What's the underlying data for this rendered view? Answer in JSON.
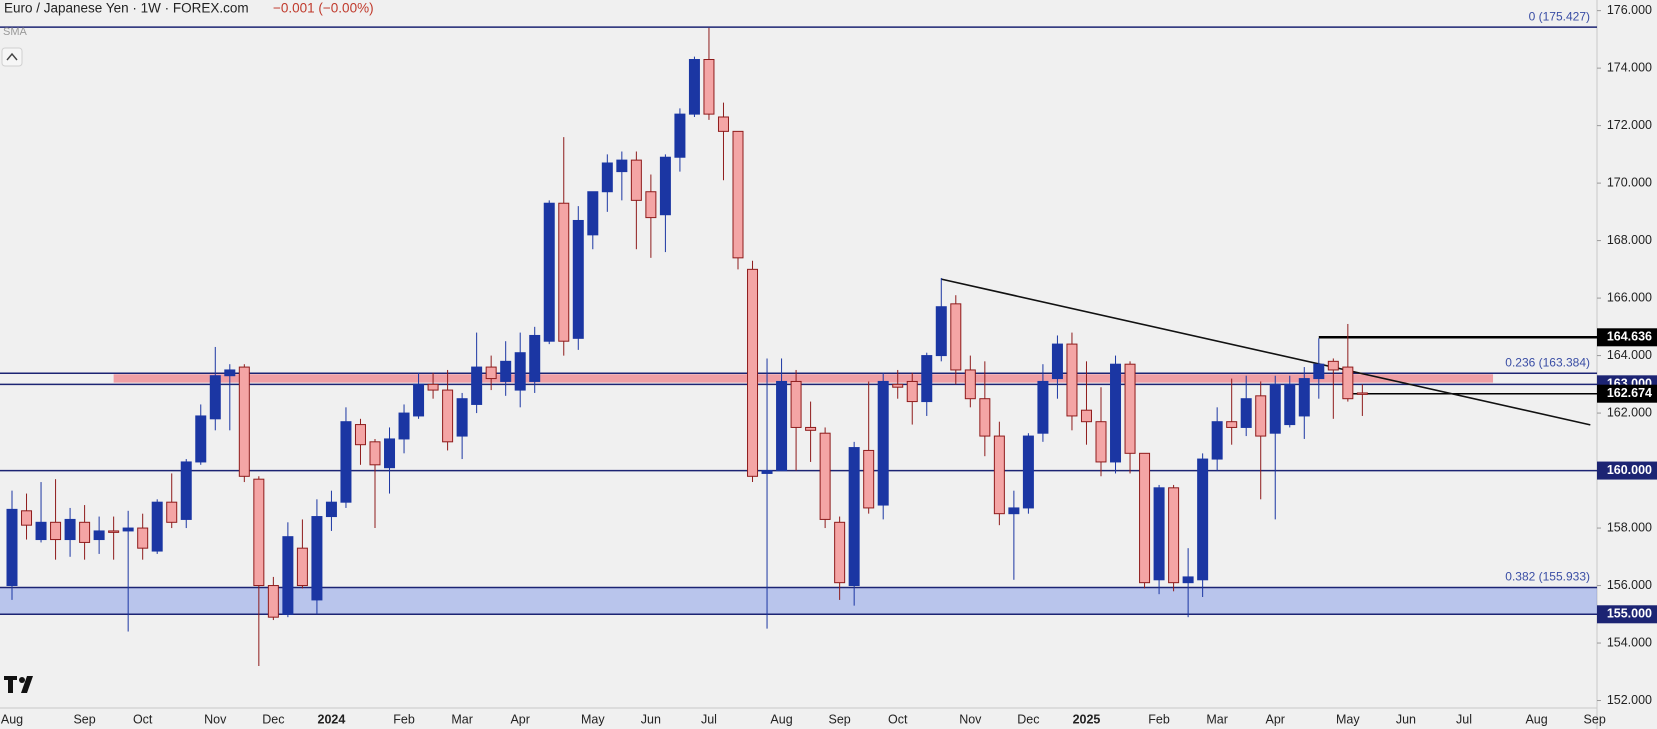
{
  "chart_data": {
    "type": "candlestick",
    "title": "Euro / Japanese Yen · 1W · FOREX.com",
    "change": "−0.001 (−0.00%)",
    "indicator": "SMA",
    "up_color": "#1b36a3",
    "down_color": "#f4a5a5",
    "down_edge": "#8e1b1b",
    "ylim": [
      151.74,
      176.37
    ],
    "yticks": [
      {
        "value": 152,
        "label": "152.000"
      },
      {
        "value": 154,
        "label": "154.000"
      },
      {
        "value": 156,
        "label": "156.000"
      },
      {
        "value": 158,
        "label": "158.000"
      },
      {
        "value": 162,
        "label": "162.000"
      },
      {
        "value": 164,
        "label": "164.000"
      },
      {
        "value": 166,
        "label": "166.000"
      },
      {
        "value": 168,
        "label": "168.000"
      },
      {
        "value": 170,
        "label": "170.000"
      },
      {
        "value": 172,
        "label": "172.000"
      },
      {
        "value": 174,
        "label": "174.000"
      },
      {
        "value": 176,
        "label": "176.000"
      }
    ],
    "categories": [
      "Aug",
      null,
      null,
      null,
      null,
      "Sep",
      null,
      null,
      null,
      "Oct",
      null,
      null,
      null,
      null,
      "Nov",
      null,
      null,
      null,
      "Dec",
      null,
      null,
      null,
      "2024",
      null,
      null,
      null,
      null,
      "Feb",
      null,
      null,
      null,
      "Mar",
      null,
      null,
      null,
      "Apr",
      null,
      null,
      null,
      null,
      "May",
      null,
      null,
      null,
      "Jun",
      null,
      null,
      null,
      "Jul",
      null,
      null,
      null,
      null,
      "Aug",
      null,
      null,
      null,
      "Sep",
      null,
      null,
      null,
      "Oct",
      null,
      null,
      null,
      null,
      "Nov",
      null,
      null,
      null,
      "Dec",
      null,
      null,
      null,
      "2025",
      null,
      null,
      null,
      null,
      "Feb",
      null,
      null,
      null,
      "Mar",
      null,
      null,
      null,
      "Apr",
      null,
      null,
      null,
      null,
      "May",
      null,
      null,
      null,
      "Jun",
      null,
      null,
      null,
      "Jul",
      null,
      null,
      null,
      null,
      "Aug",
      null,
      null,
      null,
      "Sep"
    ],
    "open": [
      156.0,
      158.6,
      157.6,
      158.2,
      157.6,
      158.2,
      157.6,
      157.9,
      157.9,
      158.0,
      157.2,
      158.9,
      158.3,
      160.3,
      161.8,
      163.3,
      163.6,
      159.7,
      156.0,
      155.0,
      157.3,
      155.5,
      158.4,
      158.9,
      161.6,
      161.0,
      160.1,
      161.1,
      161.9,
      163.0,
      162.8,
      161.2,
      162.3,
      163.6,
      163.1,
      162.8,
      163.1,
      164.5,
      169.3,
      164.6,
      168.2,
      169.7,
      170.4,
      170.8,
      169.7,
      168.9,
      170.9,
      172.4,
      174.3,
      172.3,
      171.8,
      167.0,
      159.9,
      160.0,
      163.1,
      161.5,
      161.3,
      158.2,
      156.0,
      160.7,
      158.8,
      163.0,
      163.1,
      162.4,
      164.0,
      165.8,
      163.5,
      162.5,
      161.2,
      158.5,
      158.7,
      161.3,
      163.2,
      164.4,
      162.1,
      161.7,
      160.3,
      163.7,
      160.6,
      156.2,
      159.4,
      156.1,
      156.2,
      160.4,
      161.7,
      161.5,
      162.6,
      161.3,
      161.6,
      161.9,
      163.2,
      163.8,
      163.6,
      162.7,
      null,
      null,
      null,
      null,
      null,
      null,
      null,
      null,
      null,
      null,
      null,
      null,
      null,
      null,
      null,
      null
    ],
    "high": [
      159.3,
      159.2,
      159.6,
      159.7,
      158.7,
      158.8,
      158.4,
      158.4,
      158.6,
      158.5,
      159.0,
      159.9,
      160.4,
      162.3,
      164.3,
      163.7,
      163.7,
      159.8,
      156.3,
      158.2,
      158.3,
      159.0,
      159.3,
      162.2,
      161.8,
      161.1,
      161.5,
      162.3,
      163.4,
      163.4,
      163.5,
      162.7,
      164.8,
      164.0,
      164.5,
      164.8,
      165.0,
      169.4,
      171.6,
      169.2,
      169.7,
      171.0,
      171.1,
      171.1,
      170.3,
      171.0,
      172.6,
      174.4,
      175.4,
      172.8,
      171.8,
      167.3,
      163.9,
      163.9,
      163.5,
      162.4,
      161.5,
      158.4,
      161.0,
      163.1,
      163.4,
      163.5,
      163.4,
      164.1,
      166.7,
      166.1,
      164.0,
      163.8,
      161.7,
      159.3,
      161.3,
      163.7,
      164.7,
      164.8,
      163.8,
      162.9,
      164.0,
      163.8,
      160.6,
      159.5,
      159.5,
      157.3,
      160.6,
      162.2,
      163.2,
      163.3,
      163.1,
      163.3,
      163.3,
      163.6,
      164.6,
      163.9,
      165.1,
      163.0,
      null,
      null,
      null,
      null,
      null,
      null,
      null,
      null,
      null,
      null,
      null,
      null,
      null,
      null,
      null,
      null
    ],
    "low": [
      155.5,
      157.6,
      157.5,
      156.9,
      157.0,
      156.9,
      157.1,
      156.9,
      154.4,
      156.9,
      157.1,
      158.0,
      158.0,
      160.2,
      161.4,
      161.4,
      159.6,
      153.2,
      154.8,
      154.9,
      155.9,
      155.0,
      157.9,
      158.7,
      160.2,
      158.0,
      159.2,
      160.6,
      161.8,
      162.5,
      160.7,
      160.4,
      162.0,
      162.8,
      162.6,
      162.2,
      162.7,
      164.4,
      164.0,
      164.2,
      167.7,
      169.0,
      169.4,
      167.7,
      167.4,
      167.6,
      170.4,
      172.3,
      172.2,
      170.1,
      167.0,
      159.6,
      154.5,
      160.0,
      160.0,
      160.3,
      158.0,
      155.5,
      155.3,
      158.5,
      158.3,
      162.5,
      161.6,
      161.9,
      163.8,
      163.0,
      162.2,
      160.5,
      158.1,
      156.2,
      158.5,
      161.0,
      162.5,
      161.4,
      160.9,
      159.8,
      159.9,
      159.9,
      155.9,
      155.7,
      155.8,
      154.9,
      155.6,
      160.0,
      160.9,
      161.2,
      159.0,
      158.3,
      161.5,
      161.1,
      162.5,
      161.8,
      162.4,
      161.9,
      null,
      null,
      null,
      null,
      null,
      null,
      null,
      null,
      null,
      null,
      null,
      null,
      null,
      null,
      null,
      null
    ],
    "close": [
      158.65,
      158.1,
      158.2,
      157.6,
      158.3,
      157.5,
      157.9,
      157.85,
      158.0,
      157.3,
      158.9,
      158.2,
      160.3,
      161.9,
      163.3,
      163.5,
      159.8,
      156.0,
      154.9,
      157.7,
      156.0,
      158.4,
      158.9,
      161.7,
      160.9,
      160.2,
      161.1,
      162.0,
      163.0,
      162.8,
      161.0,
      162.5,
      163.6,
      163.2,
      163.8,
      164.1,
      164.7,
      169.3,
      164.5,
      168.7,
      169.7,
      170.7,
      170.8,
      169.4,
      168.8,
      170.9,
      172.4,
      174.3,
      172.4,
      171.8,
      167.4,
      159.8,
      160.0,
      163.1,
      161.5,
      161.4,
      158.3,
      156.1,
      160.8,
      158.7,
      163.1,
      162.9,
      162.4,
      164.0,
      165.7,
      163.5,
      162.5,
      161.2,
      158.5,
      158.7,
      161.2,
      163.1,
      164.4,
      161.9,
      161.7,
      160.3,
      163.7,
      160.6,
      156.1,
      159.4,
      156.1,
      156.3,
      160.4,
      161.7,
      161.5,
      162.5,
      161.2,
      163.0,
      163.0,
      163.2,
      163.7,
      163.5,
      162.5,
      162.65,
      null,
      null,
      null,
      null,
      null,
      null,
      null,
      null,
      null,
      null,
      null,
      null,
      null,
      null,
      null,
      null
    ],
    "fib_levels": [
      {
        "value": 175.427,
        "label": "0 (175.427)"
      },
      {
        "value": 163.384,
        "label": "0.236 (163.384)"
      },
      {
        "value": 155.933,
        "label": "0.382 (155.933)"
      }
    ],
    "price_lines": [
      {
        "value": 163,
        "label": "163.000"
      },
      {
        "value": 160,
        "label": "160.000"
      },
      {
        "value": 155,
        "label": "155.000"
      }
    ],
    "marker_lines": [
      {
        "value": 164.636,
        "label": "164.636",
        "from_index": 90
      },
      {
        "value": 162.674,
        "label": "162.674",
        "from_index": 92
      }
    ],
    "line_color": "#1c2473",
    "zones": [
      {
        "from": 155,
        "to": 155.933,
        "color": "rgba(95,125,230,0.38)"
      },
      {
        "from": 163.06,
        "to": 163.35,
        "color": "rgba(238,105,115,0.6)",
        "x": [
          7,
          102
        ]
      }
    ],
    "trendline": {
      "x": [
        64,
        108.7
      ],
      "y": [
        166.66,
        161.59
      ]
    }
  }
}
